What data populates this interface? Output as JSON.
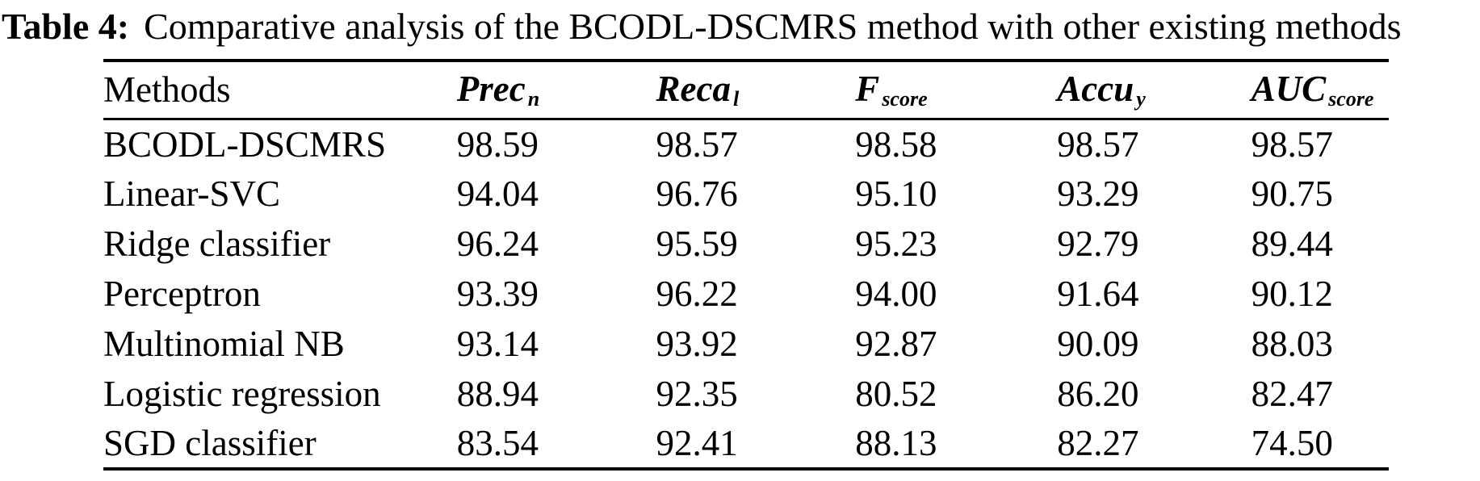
{
  "caption": {
    "label": "Table 4:",
    "text": "Comparative analysis of the BCODL-DSCMRS method with other existing methods"
  },
  "table": {
    "columns": [
      {
        "main": "Methods",
        "sub": ""
      },
      {
        "main": "Prec",
        "sub": "n"
      },
      {
        "main": "Reca",
        "sub": "l"
      },
      {
        "main": "F",
        "sub": "score"
      },
      {
        "main": "Accu",
        "sub": "y"
      },
      {
        "main": "AUC",
        "sub": "score"
      }
    ],
    "rows": [
      {
        "method": "BCODL-DSCMRS",
        "values": [
          "98.59",
          "98.57",
          "98.58",
          "98.57",
          "98.57"
        ]
      },
      {
        "method": "Linear-SVC",
        "values": [
          "94.04",
          "96.76",
          "95.10",
          "93.29",
          "90.75"
        ]
      },
      {
        "method": "Ridge classifier",
        "values": [
          "96.24",
          "95.59",
          "95.23",
          "92.79",
          "89.44"
        ]
      },
      {
        "method": "Perceptron",
        "values": [
          "93.39",
          "96.22",
          "94.00",
          "91.64",
          "90.12"
        ]
      },
      {
        "method": "Multinomial NB",
        "values": [
          "93.14",
          "93.92",
          "92.87",
          "90.09",
          "88.03"
        ]
      },
      {
        "method": "Logistic regression",
        "values": [
          "88.94",
          "92.35",
          "80.52",
          "86.20",
          "82.47"
        ]
      },
      {
        "method": "SGD classifier",
        "values": [
          "83.54",
          "92.41",
          "88.13",
          "82.27",
          "74.50"
        ]
      }
    ]
  },
  "colors": {
    "text": "#000000",
    "background": "#ffffff",
    "rule": "#000000"
  }
}
